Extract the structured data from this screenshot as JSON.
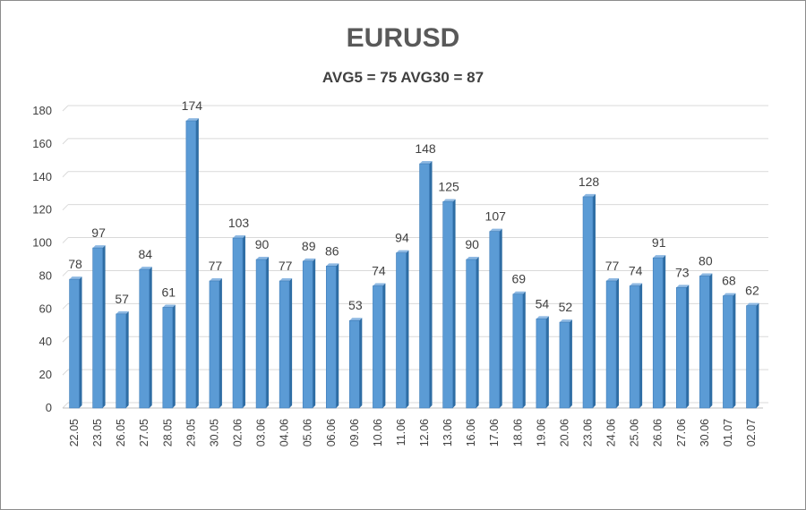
{
  "chart_data": {
    "type": "bar",
    "title": "EURUSD",
    "subtitle": "AVG5 = 75 AVG30 = 87",
    "categories": [
      "22.05",
      "23.05",
      "26.05",
      "27.05",
      "28.05",
      "29.05",
      "30.05",
      "02.06",
      "03.06",
      "04.06",
      "05.06",
      "06.06",
      "09.06",
      "10.06",
      "11.06",
      "12.06",
      "13.06",
      "16.06",
      "17.06",
      "18.06",
      "19.06",
      "20.06",
      "23.06",
      "24.06",
      "25.06",
      "26.06",
      "27.06",
      "30.06",
      "01.07",
      "02.07"
    ],
    "values": [
      78,
      97,
      57,
      84,
      61,
      174,
      77,
      103,
      90,
      77,
      89,
      86,
      53,
      74,
      94,
      148,
      125,
      90,
      107,
      69,
      54,
      52,
      128,
      77,
      74,
      91,
      73,
      80,
      68,
      62
    ],
    "ylim": [
      0,
      180
    ],
    "yticks": [
      0,
      20,
      40,
      60,
      80,
      100,
      120,
      140,
      160,
      180
    ],
    "grid": true,
    "legend": "none",
    "bar_color": "#5B9BD5",
    "bar_side_color": "#2E6DA4"
  }
}
